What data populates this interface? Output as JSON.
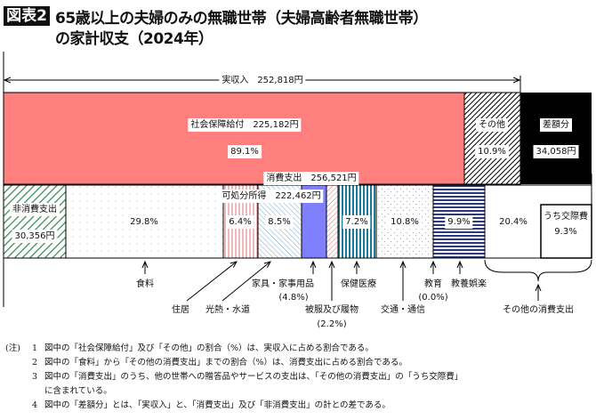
{
  "title": {
    "tag": "図表2",
    "line1": "65歳以上の夫婦のみの無職世帯（夫婦高齢者無職世帯）",
    "line2": "の家計収支（2024年）"
  },
  "income": {
    "total": "実収入　252,818円",
    "social": "社会保障給付　225,182円",
    "social_pct": "89.1%",
    "other": "その他",
    "other_pct": "10.9%",
    "diff": "差額分",
    "diff_val": "34,058円",
    "disposable": "可処分所得　222,462円"
  },
  "spending": {
    "total": "消費支出　256,521円",
    "nonconsumption": "非消費支出",
    "nonconsumption_val": "30,356円",
    "categories": [
      {
        "name": "食料",
        "pct": "29.8%"
      },
      {
        "name": "住居",
        "pct": "6.4%"
      },
      {
        "name": "光熱・水道",
        "pct": "8.5%"
      },
      {
        "name": "家具・家事用品",
        "pct": "(4.8%)"
      },
      {
        "name": "被服及び履物",
        "pct": "(2.2%)"
      },
      {
        "name": "保健医療",
        "pct": "7.2%"
      },
      {
        "name": "交通・通信",
        "pct": "10.8%"
      },
      {
        "name": "教育",
        "pct": "(0.0%)"
      },
      {
        "name": "教養娯楽",
        "pct": "9.9%"
      },
      {
        "name": "その他の消費支出",
        "pct": "20.4%"
      }
    ],
    "social_exp": "うち交際費",
    "social_exp_pct": "9.3%"
  },
  "colors": {
    "social": "#ff7f7f",
    "furniture": "#8080ff",
    "black": "#000000"
  },
  "notes": {
    "label": "(注)",
    "items": [
      {
        "num": "1",
        "text": "図中の「社会保障給付」及び「その他」の割合（%）は、実収入に占める割合である。"
      },
      {
        "num": "2",
        "text": "図中の「食料」から「その他の消費支出」までの割合（%）は、消費支出に占める割合である。"
      },
      {
        "num": "3",
        "text": "図中の「消費支出」のうち、他の世帯への贈答品やサービスの支出は、「その他の消費支出」の「うち交際費」",
        "cont": "に含まれている。"
      },
      {
        "num": "4",
        "text": "図中の「差額分」とは、「実収入」と、「消費支出」及び「非消費支出」の計との差である。"
      }
    ]
  }
}
